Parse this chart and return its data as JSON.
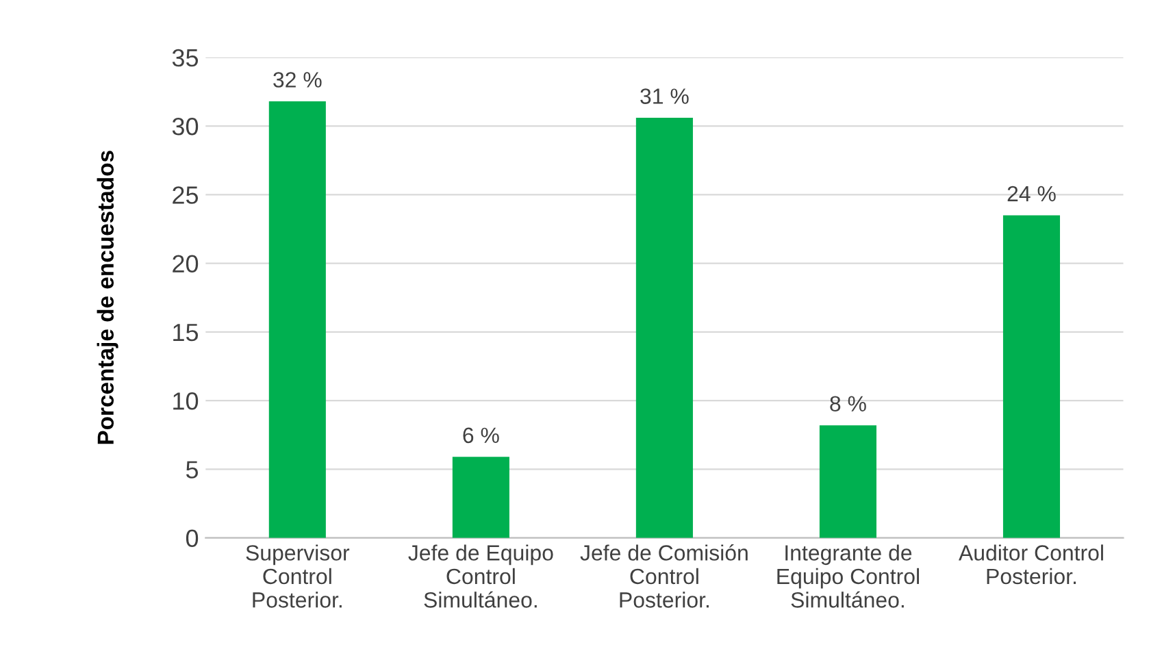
{
  "chart_data": {
    "type": "bar",
    "ylabel": "Porcentaje de encuestados",
    "categories": [
      "Supervisor\nControl\nPosterior.",
      "Jefe de Equipo\nControl\nSimultáneo.",
      "Jefe de Comisión\nControl\nPosterior.",
      "Integrante de\nEquipo Control\nSimultáneo.",
      "Auditor Control\nPosterior."
    ],
    "values": [
      31.8,
      5.9,
      30.6,
      8.2,
      23.5
    ],
    "value_labels": [
      "32 %",
      "6 %",
      "31 %",
      "8 %",
      "24 %"
    ],
    "color": "#00b050",
    "ylim": [
      0,
      35
    ],
    "yticks": [
      0,
      5,
      10,
      15,
      20,
      25,
      30,
      35
    ],
    "grid": "y",
    "legend": false
  }
}
